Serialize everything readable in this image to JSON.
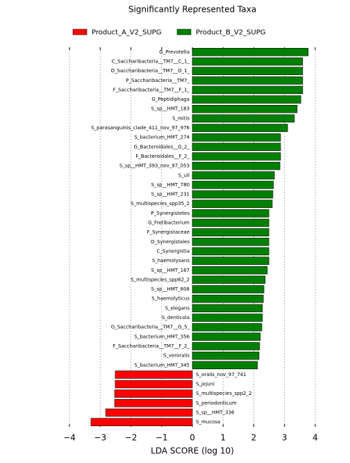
{
  "chart_data": {
    "type": "bar",
    "orientation": "horizontal",
    "title": "Significantly Represented Taxa",
    "xlabel": "LDA SCORE (log 10)",
    "categories": [
      "G_Prevotella",
      "C_Saccharibacteria__TM7__C_1_",
      "O_Saccharibacteria__TM7__O_1_",
      "P_Saccharibacteria__TM7_",
      "F_Saccharibacteria__TM7__F_1_",
      "G_Peptidiphaga",
      "S_sp__HMT_183",
      "S_mitis",
      "S_parasanguinis_clade_411_nov_97_976",
      "S_bacterium_HMT_274",
      "G_Bacteroidales__G_2_",
      "F_Bacteroidales__F_2_",
      "S_sp__HMT_393_nov_97_053",
      "S_uli",
      "S_sp__HMT_780",
      "S_sp__HMT_231",
      "S_multispecies_spp35_2",
      "P_Synergistetes",
      "G_Fretibacterium",
      "F_Synergistaceae",
      "O_Synergistales",
      "C_Synergistia",
      "S_haemolysans",
      "S_sp__HMT_167",
      "S_multispecies_spp62_2",
      "S_sp__HMT_808",
      "S_haemolyticus",
      "S_elegans",
      "S_denticola",
      "G_Saccharibacteria__TM7__G_5_",
      "S_bacterium_HMT_356",
      "F_Saccharibacteria__TM7__F_2_",
      "S_veroralis",
      "S_bacterium_HMT_345",
      "S_oralis_nov_97_741",
      "S_jejuni",
      "S_multispecies_spp2_2",
      "S_periodonticum",
      "S_sp__HMT_336",
      "S_mucosa"
    ],
    "series": [
      {
        "name": "Product_A_V2_SUPG",
        "color": "#ff0000",
        "values": [
          null,
          null,
          null,
          null,
          null,
          null,
          null,
          null,
          null,
          null,
          null,
          null,
          null,
          null,
          null,
          null,
          null,
          null,
          null,
          null,
          null,
          null,
          null,
          null,
          null,
          null,
          null,
          null,
          null,
          null,
          null,
          null,
          null,
          null,
          -2.51,
          -2.51,
          -2.53,
          -2.53,
          -2.82,
          -3.3
        ]
      },
      {
        "name": "Product_B_V2_SUPG",
        "color": "#008000",
        "values": [
          3.77,
          3.59,
          3.59,
          3.59,
          3.59,
          3.53,
          3.41,
          3.32,
          3.1,
          2.87,
          2.87,
          2.87,
          2.85,
          2.67,
          2.64,
          2.62,
          2.6,
          2.49,
          2.49,
          2.49,
          2.49,
          2.49,
          2.49,
          2.44,
          2.37,
          2.33,
          2.31,
          2.28,
          2.28,
          2.26,
          2.21,
          2.19,
          2.17,
          2.12,
          null,
          null,
          null,
          null,
          null,
          null
        ]
      }
    ],
    "xlim": [
      -4,
      4
    ],
    "xticks": [
      {
        "value": -4,
        "label": "−4"
      },
      {
        "value": -3,
        "label": "−3"
      },
      {
        "value": -2,
        "label": "−2"
      },
      {
        "value": -1,
        "label": "−1"
      },
      0,
      1,
      2,
      3,
      4
    ],
    "grid": true,
    "legend": "top"
  }
}
